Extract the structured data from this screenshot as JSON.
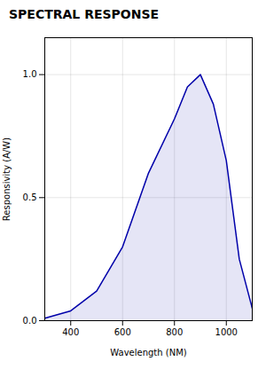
{
  "chart_data": {
    "type": "area",
    "title": "SPECTRAL RESPONSE",
    "x_label": "Wavelength (NM)",
    "y_label": "Responsivity (A/W)",
    "x": [
      300,
      400,
      500,
      600,
      700,
      800,
      850,
      900,
      950,
      1000,
      1050,
      1100
    ],
    "values": [
      0.01,
      0.04,
      0.12,
      0.3,
      0.6,
      0.82,
      0.95,
      1.0,
      0.88,
      0.65,
      0.25,
      0.05
    ],
    "color": "#0000AA",
    "xlim": [
      300,
      1100
    ],
    "xticks": [
      400,
      600,
      800,
      1000
    ],
    "ylim": [
      0,
      1.15
    ],
    "yticks": [
      {
        "value": 0,
        "label": "0.0"
      },
      {
        "value": 0.5,
        "label": "0.5"
      },
      {
        "value": 1.0,
        "label": "1.0"
      }
    ],
    "grid": true
  }
}
